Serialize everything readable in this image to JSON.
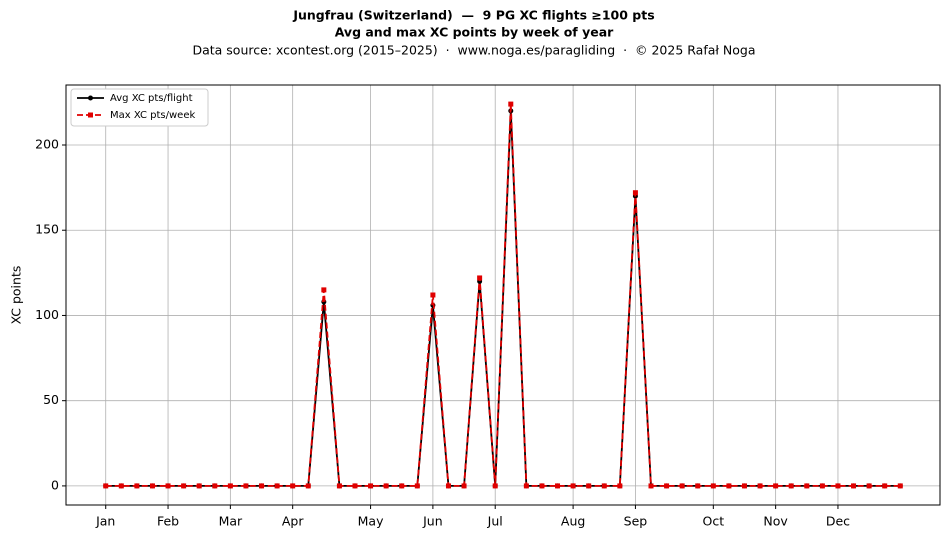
{
  "chart_data": {
    "type": "line",
    "title": "Jungfrau (Switzerland)  —  9 PG XC flights ≥100 pts",
    "subtitle": "Avg and max XC points by week of year",
    "caption": "Data source: xcontest.org (2015–2025)  ·  www.noga.es/paragliding  ·  © 2025 Rafał Noga",
    "y_label": "XC points",
    "x": [
      1,
      2,
      3,
      4,
      5,
      6,
      7,
      8,
      9,
      10,
      11,
      12,
      13,
      14,
      15,
      16,
      17,
      18,
      19,
      20,
      21,
      22,
      23,
      24,
      25,
      26,
      27,
      28,
      29,
      30,
      31,
      32,
      33,
      34,
      35,
      36,
      37,
      38,
      39,
      40,
      41,
      42,
      43,
      44,
      45,
      46,
      47,
      48,
      49,
      50,
      51,
      52
    ],
    "series": [
      {
        "name": "Avg XC pts/flight",
        "color": "#000000",
        "marker": "circle",
        "dash": false,
        "values": [
          0,
          0,
          0,
          0,
          0,
          0,
          0,
          0,
          0,
          0,
          0,
          0,
          0,
          0,
          108,
          0,
          0,
          0,
          0,
          0,
          0,
          106,
          0,
          0,
          120,
          0,
          220,
          0,
          0,
          0,
          0,
          0,
          0,
          0,
          170,
          0,
          0,
          0,
          0,
          0,
          0,
          0,
          0,
          0,
          0,
          0,
          0,
          0,
          0,
          0,
          0,
          0
        ]
      },
      {
        "name": "Max XC pts/week",
        "color": "#e00000",
        "marker": "square",
        "dash": true,
        "values": [
          0,
          0,
          0,
          0,
          0,
          0,
          0,
          0,
          0,
          0,
          0,
          0,
          0,
          0,
          115,
          0,
          0,
          0,
          0,
          0,
          0,
          112,
          0,
          0,
          122,
          0,
          224,
          0,
          0,
          0,
          0,
          0,
          0,
          0,
          172,
          0,
          0,
          0,
          0,
          0,
          0,
          0,
          0,
          0,
          0,
          0,
          0,
          0,
          0,
          0,
          0,
          0
        ]
      }
    ],
    "xlim": [
      -1.55,
      54.55
    ],
    "xticks": [
      {
        "value": 1,
        "label": "Jan"
      },
      {
        "value": 5,
        "label": "Feb"
      },
      {
        "value": 9,
        "label": "Mar"
      },
      {
        "value": 13,
        "label": "Apr"
      },
      {
        "value": 18,
        "label": "May"
      },
      {
        "value": 22,
        "label": "Jun"
      },
      {
        "value": 26,
        "label": "Jul"
      },
      {
        "value": 31,
        "label": "Aug"
      },
      {
        "value": 35,
        "label": "Sep"
      },
      {
        "value": 40,
        "label": "Oct"
      },
      {
        "value": 44,
        "label": "Nov"
      },
      {
        "value": 48,
        "label": "Dec"
      }
    ],
    "ylim": [
      -11.2,
      235.2
    ],
    "yticks": [
      0,
      50,
      100,
      150,
      200
    ],
    "grid": true,
    "legend": "upper left"
  }
}
